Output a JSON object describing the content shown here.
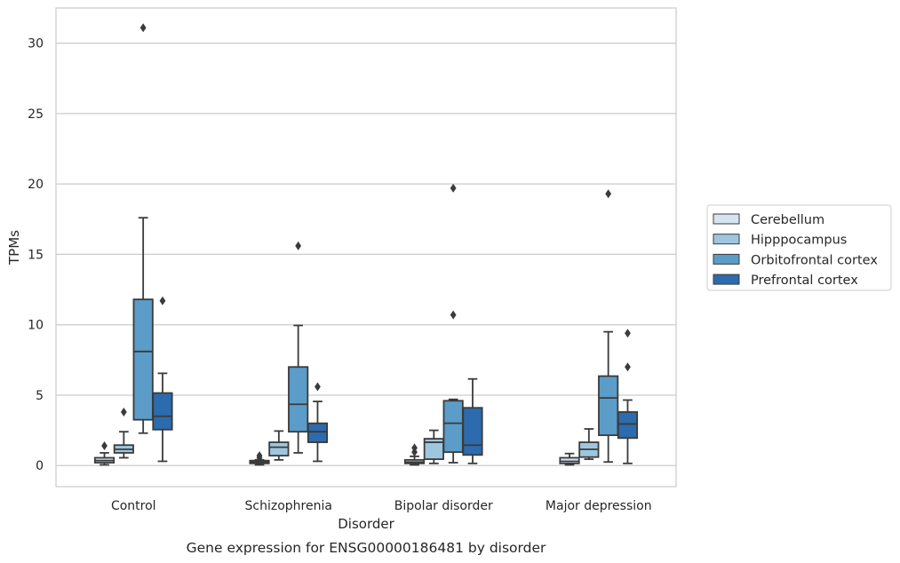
{
  "chart_data": {
    "type": "box",
    "caption": "Gene expression for ENSG00000186481 by disorder",
    "xlabel": "Disorder",
    "ylabel": "TPMs",
    "ylim": [
      -1.5,
      32.5
    ],
    "yticks": [
      0,
      5,
      10,
      15,
      20,
      25,
      30
    ],
    "grid": "horizontal",
    "legend_position": "right",
    "categories": [
      "Control",
      "Schizophrenia",
      "Bipolar disorder",
      "Major depression"
    ],
    "series": [
      {
        "name": "Cerebellum",
        "color": "#d6e4f1",
        "boxes": [
          {
            "whislo": 0.05,
            "q1": 0.2,
            "med": 0.35,
            "q3": 0.55,
            "whishi": 0.9,
            "fliers": [
              1.4
            ]
          },
          {
            "whislo": 0.05,
            "q1": 0.15,
            "med": 0.25,
            "q3": 0.35,
            "whishi": 0.4,
            "fliers": [
              0.55,
              0.7
            ]
          },
          {
            "whislo": 0.05,
            "q1": 0.15,
            "med": 0.25,
            "q3": 0.4,
            "whishi": 0.65,
            "fliers": [
              0.95,
              1.25
            ]
          },
          {
            "whislo": 0.05,
            "q1": 0.15,
            "med": 0.3,
            "q3": 0.55,
            "whishi": 0.85,
            "fliers": []
          }
        ]
      },
      {
        "name": "Hipppocampus",
        "color": "#9ec7df",
        "boxes": [
          {
            "whislo": 0.55,
            "q1": 0.9,
            "med": 1.15,
            "q3": 1.45,
            "whishi": 2.4,
            "fliers": [
              3.8
            ]
          },
          {
            "whislo": 0.4,
            "q1": 0.7,
            "med": 1.3,
            "q3": 1.65,
            "whishi": 2.45,
            "fliers": []
          },
          {
            "whislo": 0.15,
            "q1": 0.45,
            "med": 1.65,
            "q3": 1.9,
            "whishi": 2.5,
            "fliers": []
          },
          {
            "whislo": 0.45,
            "q1": 0.6,
            "med": 1.15,
            "q3": 1.65,
            "whishi": 2.6,
            "fliers": []
          }
        ]
      },
      {
        "name": "Orbitofrontal cortex",
        "color": "#5b9cc9",
        "boxes": [
          {
            "whislo": 2.3,
            "q1": 3.25,
            "med": 8.1,
            "q3": 11.8,
            "whishi": 17.6,
            "fliers": [
              31.1
            ]
          },
          {
            "whislo": 0.9,
            "q1": 2.4,
            "med": 4.35,
            "q3": 7.0,
            "whishi": 9.95,
            "fliers": [
              15.6
            ]
          },
          {
            "whislo": 0.2,
            "q1": 0.95,
            "med": 3.0,
            "q3": 4.6,
            "whishi": 4.7,
            "fliers": [
              10.7,
              19.7
            ]
          },
          {
            "whislo": 0.25,
            "q1": 2.15,
            "med": 4.8,
            "q3": 6.35,
            "whishi": 9.5,
            "fliers": [
              19.3
            ]
          }
        ]
      },
      {
        "name": "Prefrontal cortex",
        "color": "#2c6bad",
        "boxes": [
          {
            "whislo": 0.3,
            "q1": 2.55,
            "med": 3.5,
            "q3": 5.15,
            "whishi": 6.55,
            "fliers": [
              11.7
            ]
          },
          {
            "whislo": 0.3,
            "q1": 1.65,
            "med": 2.4,
            "q3": 3.0,
            "whishi": 4.55,
            "fliers": [
              5.6
            ]
          },
          {
            "whislo": 0.15,
            "q1": 0.75,
            "med": 1.45,
            "q3": 4.1,
            "whishi": 6.15,
            "fliers": []
          },
          {
            "whislo": 0.15,
            "q1": 1.95,
            "med": 2.95,
            "q3": 3.8,
            "whishi": 4.65,
            "fliers": [
              7.0,
              9.4
            ]
          }
        ]
      }
    ]
  }
}
